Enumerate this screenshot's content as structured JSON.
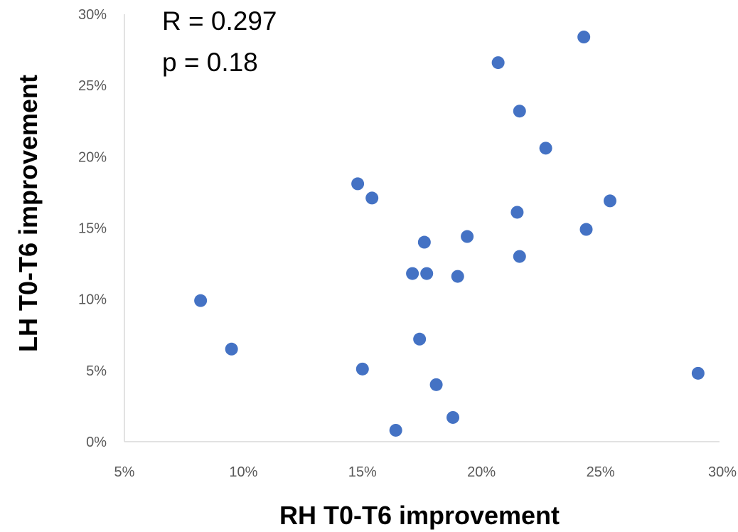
{
  "chart_data": {
    "type": "scatter",
    "title": "",
    "xlabel": "RH T0-T6 improvement",
    "ylabel": "LH T0-T6 improvement",
    "xlim": [
      0.05,
      0.3
    ],
    "ylim": [
      0.0,
      0.3
    ],
    "x_ticks": [
      0.05,
      0.1,
      0.15,
      0.2,
      0.25,
      0.3
    ],
    "y_ticks": [
      0.0,
      0.05,
      0.1,
      0.15,
      0.2,
      0.25,
      0.3
    ],
    "x_tick_labels": [
      "5%",
      "10%",
      "15%",
      "20%",
      "25%",
      "30%"
    ],
    "y_tick_labels": [
      "0%",
      "5%",
      "10%",
      "15%",
      "20%",
      "25%",
      "30%"
    ],
    "grid": false,
    "legend": "none",
    "marker_color": "#4472C4",
    "annotations": [
      "R = 0.297",
      "p = 0.18"
    ],
    "points": [
      {
        "x": 0.082,
        "y": 0.099
      },
      {
        "x": 0.095,
        "y": 0.065
      },
      {
        "x": 0.148,
        "y": 0.181
      },
      {
        "x": 0.15,
        "y": 0.051
      },
      {
        "x": 0.154,
        "y": 0.171
      },
      {
        "x": 0.164,
        "y": 0.008
      },
      {
        "x": 0.171,
        "y": 0.118
      },
      {
        "x": 0.174,
        "y": 0.072
      },
      {
        "x": 0.176,
        "y": 0.14
      },
      {
        "x": 0.177,
        "y": 0.118
      },
      {
        "x": 0.181,
        "y": 0.04
      },
      {
        "x": 0.188,
        "y": 0.017
      },
      {
        "x": 0.19,
        "y": 0.116
      },
      {
        "x": 0.194,
        "y": 0.144
      },
      {
        "x": 0.207,
        "y": 0.266
      },
      {
        "x": 0.215,
        "y": 0.161
      },
      {
        "x": 0.216,
        "y": 0.13
      },
      {
        "x": 0.216,
        "y": 0.232
      },
      {
        "x": 0.227,
        "y": 0.206
      },
      {
        "x": 0.243,
        "y": 0.284
      },
      {
        "x": 0.244,
        "y": 0.149
      },
      {
        "x": 0.254,
        "y": 0.169
      },
      {
        "x": 0.291,
        "y": 0.048
      }
    ]
  }
}
